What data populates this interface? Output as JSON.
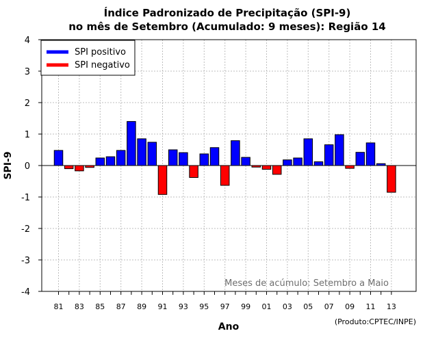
{
  "chart_data": {
    "type": "bar",
    "title_line1": "Índice Padronizado de Precipitação (SPI-9)",
    "title_line2": "no mês de Setembro (Acumulado: 9 meses): Região 14",
    "xlabel": "Ano",
    "ylabel": "SPI-9",
    "ylim": [
      -4,
      4
    ],
    "yticks": [
      "4",
      "3",
      "2",
      "1",
      "0",
      "-1",
      "-2",
      "-3",
      "-4"
    ],
    "grid": true,
    "legend_position": "top-left",
    "legend": [
      {
        "label": "SPI positivo",
        "color": "#0000ff"
      },
      {
        "label": "SPI negativo",
        "color": "#ff0000"
      }
    ],
    "annotation": "Meses de acúmulo: Setembro a Maio",
    "credit": "(Produto:CPTEC/INPE)",
    "xtick_labels": [
      "81",
      "83",
      "85",
      "87",
      "89",
      "91",
      "93",
      "95",
      "97",
      "99",
      "01",
      "03",
      "05",
      "07",
      "09",
      "11",
      "13"
    ],
    "years": [
      1981,
      1982,
      1983,
      1984,
      1985,
      1986,
      1987,
      1988,
      1989,
      1990,
      1991,
      1992,
      1993,
      1994,
      1995,
      1996,
      1997,
      1998,
      1999,
      2000,
      2001,
      2002,
      2003,
      2004,
      2005,
      2006,
      2007,
      2008,
      2009,
      2010,
      2011,
      2012,
      2013
    ],
    "values": [
      0.48,
      -0.1,
      -0.17,
      -0.06,
      0.24,
      0.28,
      0.48,
      1.4,
      0.85,
      0.74,
      -0.92,
      0.5,
      0.41,
      -0.38,
      0.37,
      0.57,
      -0.63,
      0.79,
      0.26,
      -0.05,
      -0.12,
      -0.28,
      0.18,
      0.24,
      0.85,
      0.12,
      0.66,
      0.98,
      -0.09,
      0.42,
      0.72,
      0.06,
      -0.85
    ],
    "positive_color": "#0000ff",
    "negative_color": "#ff0000"
  }
}
